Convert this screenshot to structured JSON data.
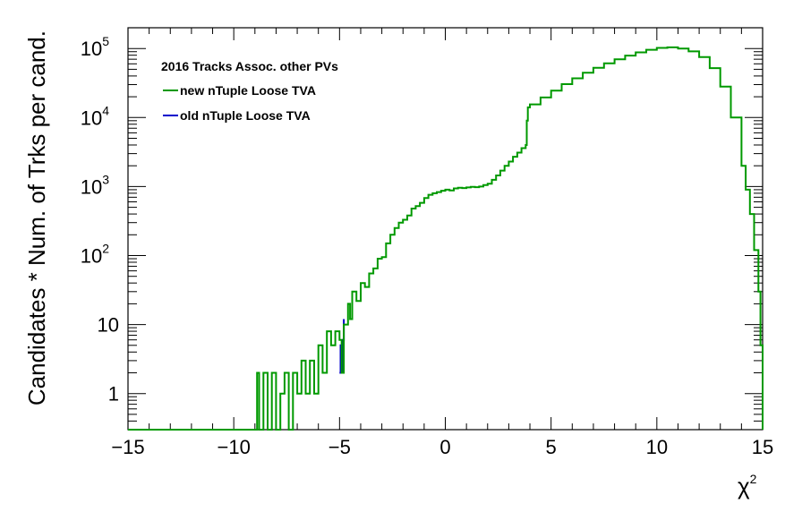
{
  "chart_data": {
    "type": "line",
    "title": "",
    "xlabel": "χ",
    "xlabel_superscript": "2",
    "ylabel": "Candidates * Num. of Trks per cand.",
    "xlim": [
      -15,
      15
    ],
    "ylim": [
      0.3,
      200000
    ],
    "y_scale": "log",
    "grid": false,
    "x_ticks": [
      -15,
      -10,
      -5,
      0,
      5,
      10,
      15
    ],
    "y_ticks": [
      {
        "value": 1,
        "label": "1",
        "sup": ""
      },
      {
        "value": 10,
        "label": "10",
        "sup": ""
      },
      {
        "value": 100,
        "label": "10",
        "sup": "2"
      },
      {
        "value": 1000,
        "label": "10",
        "sup": "3"
      },
      {
        "value": 10000,
        "label": "10",
        "sup": "4"
      },
      {
        "value": 100000,
        "label": "10",
        "sup": "5"
      }
    ],
    "legend": {
      "header": "2016 Tracks Assoc. other PVs",
      "placement": "top-left",
      "entries": [
        {
          "label": "new nTuple Loose TVA",
          "color": "#009900"
        },
        {
          "label": "old nTuple Loose TVA",
          "color": "#0000cc"
        }
      ]
    },
    "series": [
      {
        "name": "new nTuple Loose TVA",
        "color": "#009900",
        "x": [
          -15,
          -9.0,
          -8.9,
          -8.8,
          -8.6,
          -8.4,
          -8.2,
          -8.0,
          -7.8,
          -7.6,
          -7.4,
          -7.2,
          -7.0,
          -6.8,
          -6.6,
          -6.4,
          -6.2,
          -6.0,
          -5.8,
          -5.6,
          -5.4,
          -5.2,
          -5.0,
          -4.9,
          -4.8,
          -4.6,
          -4.5,
          -4.4,
          -4.2,
          -4.0,
          -3.8,
          -3.6,
          -3.4,
          -3.2,
          -3.0,
          -2.8,
          -2.6,
          -2.4,
          -2.2,
          -2.0,
          -1.8,
          -1.6,
          -1.4,
          -1.2,
          -1.0,
          -0.8,
          -0.6,
          -0.4,
          -0.2,
          0.0,
          0.2,
          0.4,
          0.6,
          0.8,
          1.0,
          1.2,
          1.4,
          1.6,
          1.8,
          2.0,
          2.2,
          2.4,
          2.6,
          2.8,
          3.0,
          3.2,
          3.4,
          3.6,
          3.8,
          3.85,
          3.9,
          4.0,
          4.5,
          5.0,
          5.5,
          6.0,
          6.5,
          7.0,
          7.5,
          8.0,
          8.5,
          9.0,
          9.5,
          10.0,
          10.5,
          11.0,
          11.5,
          12.0,
          12.5,
          13.0,
          13.5,
          14.0,
          14.2,
          14.4,
          14.6,
          14.8,
          14.9,
          15.0
        ],
        "y": [
          0.3,
          0.3,
          2,
          0.3,
          2,
          0.3,
          2,
          0.3,
          1,
          2,
          0.3,
          2,
          1,
          3,
          1,
          3,
          1,
          5,
          2,
          8,
          5,
          8,
          6,
          2,
          10,
          20,
          12,
          30,
          22,
          40,
          35,
          55,
          65,
          90,
          95,
          150,
          200,
          250,
          300,
          330,
          380,
          480,
          520,
          580,
          680,
          760,
          800,
          830,
          870,
          900,
          880,
          940,
          960,
          950,
          970,
          990,
          980,
          1000,
          1050,
          1100,
          1250,
          1450,
          1700,
          2000,
          2300,
          2700,
          3100,
          3600,
          4000,
          9000,
          14000,
          15500,
          19500,
          24500,
          30500,
          37000,
          44500,
          52500,
          61000,
          70000,
          79000,
          88000,
          96000,
          102000,
          104000,
          100000,
          91000,
          75000,
          52000,
          28000,
          10000,
          2000,
          900,
          400,
          120,
          30,
          5,
          0.3
        ]
      },
      {
        "name": "old nTuple Loose TVA",
        "color": "#0000cc",
        "x": [
          -5.0,
          -4.95,
          -4.9,
          -4.85,
          -4.8
        ],
        "y": [
          2,
          5,
          2,
          6,
          12
        ]
      }
    ]
  }
}
